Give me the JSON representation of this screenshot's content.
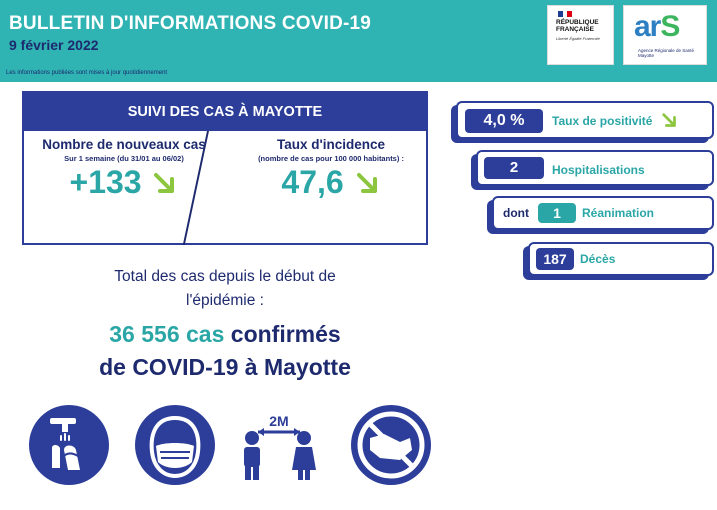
{
  "header": {
    "title": "BULLETIN D'INFORMATIONS COVID-19",
    "date": "9 février 2022",
    "note": "Les informations publiées sont mises à jour quotidiennement"
  },
  "logos": {
    "rf_line1": "RÉPUBLIQUE",
    "rf_line2": "FRANÇAISE",
    "rf_motto": "Liberté Égalité Fraternité",
    "ars_word_a": "ar",
    "ars_word_s": "S",
    "ars_sub": "Agence Régionale de Santé Mayotte"
  },
  "suivi": {
    "title": "SUIVI DES CAS À MAYOTTE",
    "nouveaux": {
      "title": "Nombre de nouveaux cas",
      "subtitle": "Sur 1 semaine (du 31/01 au 06/02)",
      "value": "+133"
    },
    "incidence": {
      "title": "Taux d'incidence",
      "subtitle": "(nombre de cas pour 100 000 habitants) :",
      "value": "47,6"
    }
  },
  "total": {
    "line1": "Total des cas depuis le début de",
    "line2": "l'épidémie :",
    "count": "36 556 cas",
    "confirmed_word": "confirmés",
    "line4": "de COVID-19 à Mayotte"
  },
  "stats": {
    "positivite": {
      "value": "4,0 %",
      "label": "Taux de positivité"
    },
    "hospitalisations": {
      "value": "2",
      "label": "Hospitalisations"
    },
    "reanimation": {
      "prefix": "dont",
      "value": "1",
      "label": "Réanimation"
    },
    "deces": {
      "value": "187",
      "label": "Décès"
    }
  },
  "colors": {
    "teal": "#2fb3b3",
    "navy": "#2c3e99",
    "dark_navy": "#1e2a6e",
    "green_arrow": "#8cc63f"
  },
  "icons": [
    "hand-washing-icon",
    "face-mask-icon",
    "social-distance-2m-icon",
    "no-handshake-icon"
  ]
}
